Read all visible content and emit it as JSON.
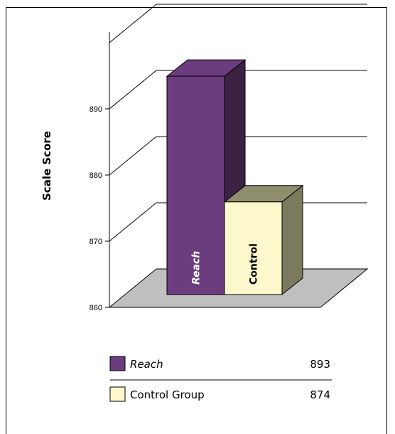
{
  "chart_data": {
    "type": "bar",
    "categories": [
      "Reach",
      "Control"
    ],
    "values": [
      893,
      874
    ],
    "bar_labels": [
      "Reach",
      "Control"
    ],
    "ylabel": "Scale Score",
    "ylim": [
      860,
      900
    ],
    "yticks": [
      860,
      870,
      880,
      890
    ],
    "grid": true,
    "colors": {
      "reach": "#6b3d7f",
      "control": "#fdf8cc"
    },
    "legend": {
      "position": "bottom",
      "entries": [
        {
          "label": "Reach",
          "value": "893",
          "color": "#6b3d7f"
        },
        {
          "label": "Control Group",
          "value": "874",
          "color": "#fdf8cc"
        }
      ]
    }
  }
}
